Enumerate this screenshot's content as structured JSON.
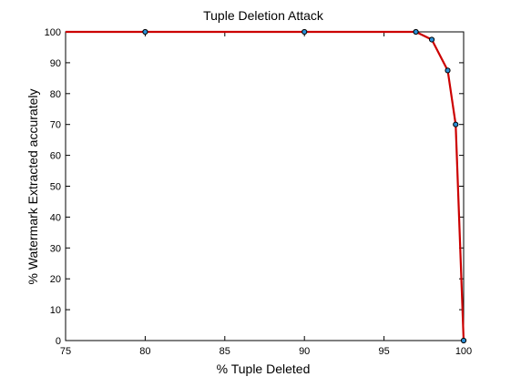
{
  "chart_data": {
    "type": "line",
    "title": "Tuple Deletion Attack",
    "xlabel": "% Tuple Deleted",
    "ylabel": "% Watermark Extracted accurately",
    "xlim": [
      75,
      100
    ],
    "ylim": [
      0,
      100
    ],
    "xticks": [
      75,
      80,
      85,
      90,
      95,
      100
    ],
    "yticks": [
      0,
      10,
      20,
      30,
      40,
      50,
      60,
      70,
      80,
      90,
      100
    ],
    "grid": false,
    "legend": "none",
    "series": [
      {
        "x": [
          75,
          80,
          90,
          97,
          98,
          99,
          99.5,
          100
        ],
        "y": [
          100,
          100,
          100,
          100,
          97.5,
          87.5,
          70,
          0
        ],
        "line_color": "#cc0000",
        "marker_face": "#2b8fd6",
        "marker_edge": "#000000"
      }
    ]
  }
}
